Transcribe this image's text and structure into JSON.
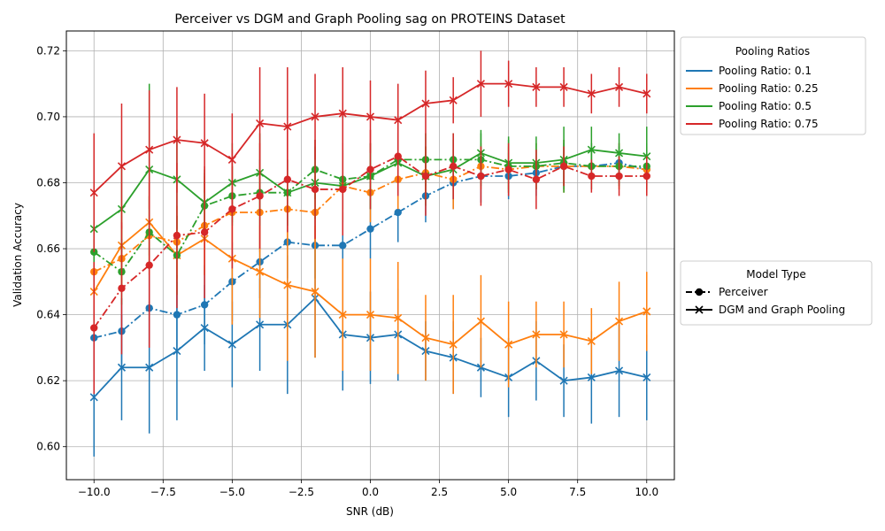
{
  "chart_data": {
    "type": "line",
    "title": "Perceiver vs DGM and Graph Pooling sag on PROTEINS Dataset",
    "xlabel": "SNR (dB)",
    "ylabel": "Validation Accuracy",
    "xlim": [
      -11.0,
      11.0
    ],
    "ylim": [
      0.59,
      0.726
    ],
    "x_ticks": [
      -10,
      -7.5,
      -5,
      -2.5,
      0,
      2.5,
      5,
      7.5,
      10
    ],
    "x_tick_labels": [
      "−10.0",
      "−7.5",
      "−5.0",
      "−2.5",
      "0.0",
      "2.5",
      "5.0",
      "7.5",
      "10.0"
    ],
    "y_ticks": [
      0.6,
      0.62,
      0.64,
      0.66,
      0.68,
      0.7,
      0.72
    ],
    "y_tick_labels": [
      "0.60",
      "0.62",
      "0.64",
      "0.66",
      "0.68",
      "0.70",
      "0.72"
    ],
    "grid": true,
    "x": [
      -10,
      -9,
      -8,
      -7,
      -6,
      -5,
      -4,
      -3,
      -2,
      -1,
      0,
      1,
      2,
      3,
      4,
      5,
      6,
      7,
      8,
      9,
      10
    ],
    "legend_ratios": {
      "title": "Pooling Ratios",
      "placement": "upper right, outside plot",
      "entries": [
        {
          "label": "Pooling Ratio: 0.1",
          "color": "#1f77b4"
        },
        {
          "label": "Pooling Ratio: 0.25",
          "color": "#ff7f0e"
        },
        {
          "label": "Pooling Ratio: 0.5",
          "color": "#2ca02c"
        },
        {
          "label": "Pooling Ratio: 0.75",
          "color": "#d62728"
        }
      ]
    },
    "legend_models": {
      "title": "Model Type",
      "placement": "center right, outside plot",
      "entries": [
        {
          "label": "Perceiver",
          "style": "dashdot",
          "marker": "circle"
        },
        {
          "label": "DGM and Graph Pooling",
          "style": "solid",
          "marker": "x"
        }
      ]
    },
    "series": [
      {
        "ratio": "0.1",
        "model": "Perceiver",
        "color": "#1f77b4",
        "style": "dashdot",
        "marker": "circle",
        "values": [
          0.633,
          0.635,
          0.642,
          0.64,
          0.643,
          0.65,
          0.656,
          0.662,
          0.661,
          0.661,
          0.666,
          0.671,
          0.676,
          0.68,
          0.682,
          0.682,
          0.683,
          0.685,
          0.685,
          0.686,
          0.684
        ],
        "errors": [
          0.01,
          0.01,
          0.012,
          0.012,
          0.012,
          0.012,
          0.011,
          0.011,
          0.01,
          0.01,
          0.009,
          0.009,
          0.008,
          0.008,
          0.008,
          0.007,
          0.007,
          0.007,
          0.007,
          0.006,
          0.006
        ]
      },
      {
        "ratio": "0.1",
        "model": "DGM and Graph Pooling",
        "color": "#1f77b4",
        "style": "solid",
        "marker": "x",
        "values": [
          0.615,
          0.624,
          0.624,
          0.629,
          0.636,
          0.631,
          0.637,
          0.637,
          0.645,
          0.634,
          0.633,
          0.634,
          0.629,
          0.627,
          0.624,
          0.621,
          0.626,
          0.62,
          0.621,
          0.623,
          0.621
        ],
        "errors": [
          0.018,
          0.016,
          0.02,
          0.021,
          0.013,
          0.013,
          0.014,
          0.021,
          0.018,
          0.017,
          0.014,
          0.014,
          0.009,
          0.011,
          0.009,
          0.012,
          0.012,
          0.011,
          0.014,
          0.014,
          0.013
        ]
      },
      {
        "ratio": "0.25",
        "model": "Perceiver",
        "color": "#ff7f0e",
        "style": "dashdot",
        "marker": "circle",
        "values": [
          0.653,
          0.657,
          0.664,
          0.662,
          0.667,
          0.671,
          0.671,
          0.672,
          0.671,
          0.679,
          0.677,
          0.681,
          0.683,
          0.681,
          0.685,
          0.684,
          0.685,
          0.685,
          0.685,
          0.685,
          0.684
        ],
        "errors": [
          0.01,
          0.01,
          0.012,
          0.011,
          0.015,
          0.014,
          0.012,
          0.011,
          0.011,
          0.01,
          0.009,
          0.009,
          0.008,
          0.009,
          0.007,
          0.007,
          0.007,
          0.008,
          0.007,
          0.007,
          0.007
        ]
      },
      {
        "ratio": "0.25",
        "model": "DGM and Graph Pooling",
        "color": "#ff7f0e",
        "style": "solid",
        "marker": "x",
        "values": [
          0.647,
          0.661,
          0.668,
          0.658,
          0.663,
          0.657,
          0.653,
          0.649,
          0.647,
          0.64,
          0.64,
          0.639,
          0.633,
          0.631,
          0.638,
          0.631,
          0.634,
          0.634,
          0.632,
          0.638,
          0.641
        ],
        "errors": [
          0.014,
          0.012,
          0.012,
          0.012,
          0.011,
          0.02,
          0.014,
          0.023,
          0.02,
          0.017,
          0.017,
          0.017,
          0.013,
          0.015,
          0.014,
          0.013,
          0.01,
          0.01,
          0.01,
          0.012,
          0.012
        ]
      },
      {
        "ratio": "0.5",
        "model": "Perceiver",
        "color": "#2ca02c",
        "style": "dashdot",
        "marker": "circle",
        "values": [
          0.659,
          0.653,
          0.665,
          0.658,
          0.673,
          0.676,
          0.677,
          0.677,
          0.684,
          0.681,
          0.682,
          0.687,
          0.687,
          0.687,
          0.687,
          0.685,
          0.685,
          0.686,
          0.685,
          0.685,
          0.685
        ],
        "errors": [
          0.009,
          0.01,
          0.011,
          0.012,
          0.01,
          0.009,
          0.01,
          0.01,
          0.009,
          0.009,
          0.01,
          0.009,
          0.008,
          0.008,
          0.008,
          0.008,
          0.007,
          0.007,
          0.007,
          0.006,
          0.007
        ]
      },
      {
        "ratio": "0.5",
        "model": "DGM and Graph Pooling",
        "color": "#2ca02c",
        "style": "solid",
        "marker": "x",
        "values": [
          0.666,
          0.672,
          0.684,
          0.681,
          0.674,
          0.68,
          0.683,
          0.677,
          0.68,
          0.679,
          0.682,
          0.686,
          0.682,
          0.684,
          0.689,
          0.686,
          0.686,
          0.687,
          0.69,
          0.689,
          0.688
        ],
        "errors": [
          0.013,
          0.013,
          0.026,
          0.015,
          0.01,
          0.012,
          0.012,
          0.01,
          0.011,
          0.011,
          0.01,
          0.009,
          0.009,
          0.009,
          0.007,
          0.008,
          0.008,
          0.01,
          0.007,
          0.006,
          0.009
        ]
      },
      {
        "ratio": "0.75",
        "model": "Perceiver",
        "color": "#d62728",
        "style": "dashdot",
        "marker": "circle",
        "values": [
          0.636,
          0.648,
          0.655,
          0.664,
          0.665,
          0.672,
          0.676,
          0.681,
          0.678,
          0.678,
          0.684,
          0.688,
          0.682,
          0.685,
          0.682,
          0.684,
          0.681,
          0.685,
          0.682,
          0.682,
          0.682
        ],
        "errors": [
          0.02,
          0.02,
          0.025,
          0.022,
          0.02,
          0.018,
          0.016,
          0.016,
          0.015,
          0.014,
          0.012,
          0.012,
          0.012,
          0.01,
          0.009,
          0.008,
          0.009,
          0.006,
          0.005,
          0.006,
          0.006
        ]
      },
      {
        "ratio": "0.75",
        "model": "DGM and Graph Pooling",
        "color": "#d62728",
        "style": "solid",
        "marker": "x",
        "values": [
          0.677,
          0.685,
          0.69,
          0.693,
          0.692,
          0.687,
          0.698,
          0.697,
          0.7,
          0.701,
          0.7,
          0.699,
          0.704,
          0.705,
          0.71,
          0.71,
          0.709,
          0.709,
          0.707,
          0.709,
          0.707
        ],
        "errors": [
          0.018,
          0.019,
          0.018,
          0.016,
          0.015,
          0.014,
          0.017,
          0.018,
          0.013,
          0.014,
          0.011,
          0.011,
          0.01,
          0.007,
          0.01,
          0.007,
          0.006,
          0.006,
          0.006,
          0.006,
          0.006
        ]
      }
    ]
  }
}
